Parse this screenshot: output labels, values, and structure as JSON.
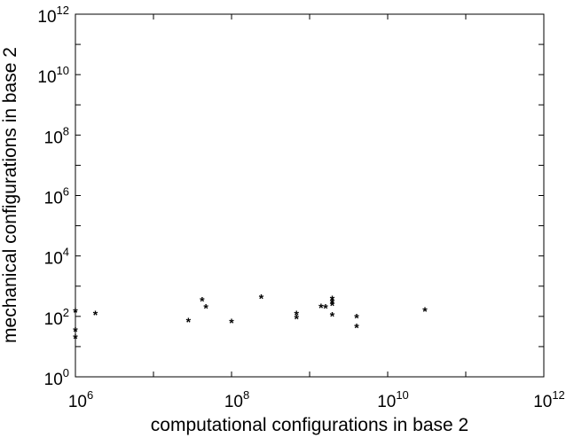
{
  "chart_data": {
    "type": "scatter",
    "title": "",
    "xlabel": "computational configurations in base 2",
    "ylabel": "mechanical configurations in base 2",
    "x_scale": "log",
    "y_scale": "log",
    "xlim": [
      1000000,
      1000000000000
    ],
    "ylim": [
      1,
      1000000000000
    ],
    "x_ticks": [
      {
        "base": "10",
        "exp": "6"
      },
      {
        "base": "10",
        "exp": "8"
      },
      {
        "base": "10",
        "exp": "10"
      },
      {
        "base": "10",
        "exp": "12"
      }
    ],
    "y_ticks": [
      {
        "base": "10",
        "exp": "0"
      },
      {
        "base": "10",
        "exp": "2"
      },
      {
        "base": "10",
        "exp": "4"
      },
      {
        "base": "10",
        "exp": "6"
      },
      {
        "base": "10",
        "exp": "8"
      },
      {
        "base": "10",
        "exp": "10"
      },
      {
        "base": "10",
        "exp": "12"
      }
    ],
    "grid": false,
    "marker": "*",
    "marker_color": "#000000",
    "points": [
      {
        "x": 1000000,
        "y": 150
      },
      {
        "x": 1000000,
        "y": 35
      },
      {
        "x": 1000000,
        "y": 20
      },
      {
        "x": 1800000,
        "y": 120
      },
      {
        "x": 28000000,
        "y": 70
      },
      {
        "x": 42000000,
        "y": 350
      },
      {
        "x": 47000000,
        "y": 200
      },
      {
        "x": 100000000,
        "y": 65
      },
      {
        "x": 240000000,
        "y": 420
      },
      {
        "x": 680000000,
        "y": 120
      },
      {
        "x": 680000000,
        "y": 90
      },
      {
        "x": 1400000000,
        "y": 210
      },
      {
        "x": 1600000000,
        "y": 200
      },
      {
        "x": 1950000000,
        "y": 380
      },
      {
        "x": 1950000000,
        "y": 300
      },
      {
        "x": 1950000000,
        "y": 250
      },
      {
        "x": 1950000000,
        "y": 110
      },
      {
        "x": 4000000000,
        "y": 95
      },
      {
        "x": 4000000000,
        "y": 45
      },
      {
        "x": 30000000000,
        "y": 160
      }
    ]
  }
}
